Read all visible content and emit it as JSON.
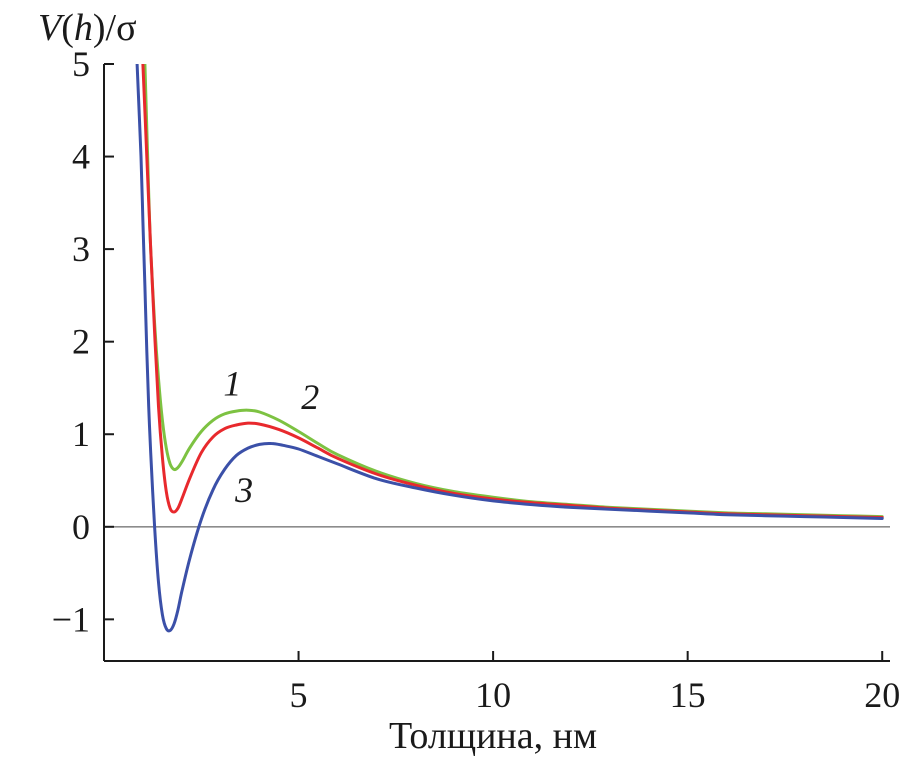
{
  "chart_data": {
    "type": "line",
    "title": "",
    "ylabel": "V(h)/σ",
    "xlabel": "Толщина, нм",
    "xlim": [
      0.0,
      20.2
    ],
    "ylim": [
      -1.45,
      5.0
    ],
    "x_ticks": [
      5,
      10,
      15,
      20
    ],
    "y_ticks": [
      -1,
      0,
      1,
      2,
      3,
      4,
      5
    ],
    "x_tick_labels": [
      "5",
      "10",
      "15",
      "20"
    ],
    "y_tick_labels": [
      "−1",
      "0",
      "1",
      "2",
      "3",
      "4",
      "5"
    ],
    "zero_line": true,
    "grid": false,
    "legend": "none",
    "series": [
      {
        "label": "1",
        "label_position": [
          3.3,
          1.55
        ],
        "color": "#7dc242",
        "x": [
          1.05,
          1.1,
          1.15,
          1.2,
          1.3,
          1.4,
          1.5,
          1.6,
          1.7,
          1.8,
          1.9,
          2.0,
          2.2,
          2.5,
          2.8,
          3.1,
          3.4,
          3.7,
          4.0,
          4.5,
          5.0,
          5.5,
          6.0,
          7.0,
          8.0,
          9.0,
          10.0,
          11.0,
          12.0,
          13.0,
          14.0,
          15.0,
          16.0,
          17.0,
          18.0,
          19.0,
          20.0
        ],
        "y": [
          5.0,
          4.3,
          3.6,
          3.0,
          2.2,
          1.6,
          1.15,
          0.85,
          0.68,
          0.62,
          0.64,
          0.7,
          0.85,
          1.03,
          1.15,
          1.22,
          1.25,
          1.26,
          1.24,
          1.15,
          1.03,
          0.9,
          0.78,
          0.6,
          0.47,
          0.38,
          0.32,
          0.27,
          0.24,
          0.21,
          0.19,
          0.17,
          0.15,
          0.14,
          0.13,
          0.12,
          0.11
        ]
      },
      {
        "label": "2",
        "label_position": [
          5.3,
          1.4
        ],
        "color": "#e8292d",
        "x": [
          1.0,
          1.1,
          1.2,
          1.3,
          1.4,
          1.5,
          1.6,
          1.7,
          1.8,
          1.9,
          2.0,
          2.2,
          2.5,
          2.8,
          3.1,
          3.4,
          3.7,
          4.0,
          4.5,
          5.0,
          5.5,
          6.0,
          7.0,
          8.0,
          9.0,
          10.0,
          11.0,
          12.0,
          13.0,
          14.0,
          15.0,
          16.0,
          17.0,
          18.0,
          19.0,
          20.0
        ],
        "y": [
          5.0,
          4.0,
          3.0,
          2.1,
          1.3,
          0.75,
          0.38,
          0.2,
          0.16,
          0.2,
          0.3,
          0.52,
          0.8,
          0.97,
          1.06,
          1.1,
          1.12,
          1.11,
          1.05,
          0.96,
          0.85,
          0.74,
          0.57,
          0.45,
          0.36,
          0.3,
          0.26,
          0.23,
          0.2,
          0.18,
          0.16,
          0.14,
          0.13,
          0.12,
          0.11,
          0.1
        ]
      },
      {
        "label": "3",
        "label_position": [
          3.6,
          0.4
        ],
        "color": "#3b50a8",
        "x": [
          0.85,
          0.95,
          1.0,
          1.05,
          1.1,
          1.15,
          1.2,
          1.3,
          1.4,
          1.5,
          1.6,
          1.7,
          1.8,
          1.9,
          2.0,
          2.2,
          2.5,
          2.8,
          3.1,
          3.4,
          3.7,
          4.0,
          4.3,
          4.6,
          5.0,
          5.5,
          6.0,
          7.0,
          8.0,
          9.0,
          10.0,
          11.0,
          12.0,
          13.0,
          14.0,
          15.0,
          16.0,
          17.0,
          18.0,
          19.0,
          20.0
        ],
        "y": [
          5.0,
          4.0,
          3.3,
          2.6,
          1.9,
          1.3,
          0.8,
          0.0,
          -0.6,
          -0.95,
          -1.1,
          -1.12,
          -1.05,
          -0.9,
          -0.7,
          -0.35,
          0.08,
          0.4,
          0.62,
          0.77,
          0.85,
          0.89,
          0.9,
          0.88,
          0.84,
          0.76,
          0.68,
          0.52,
          0.42,
          0.34,
          0.28,
          0.24,
          0.21,
          0.19,
          0.17,
          0.15,
          0.13,
          0.12,
          0.11,
          0.1,
          0.09
        ]
      }
    ]
  }
}
